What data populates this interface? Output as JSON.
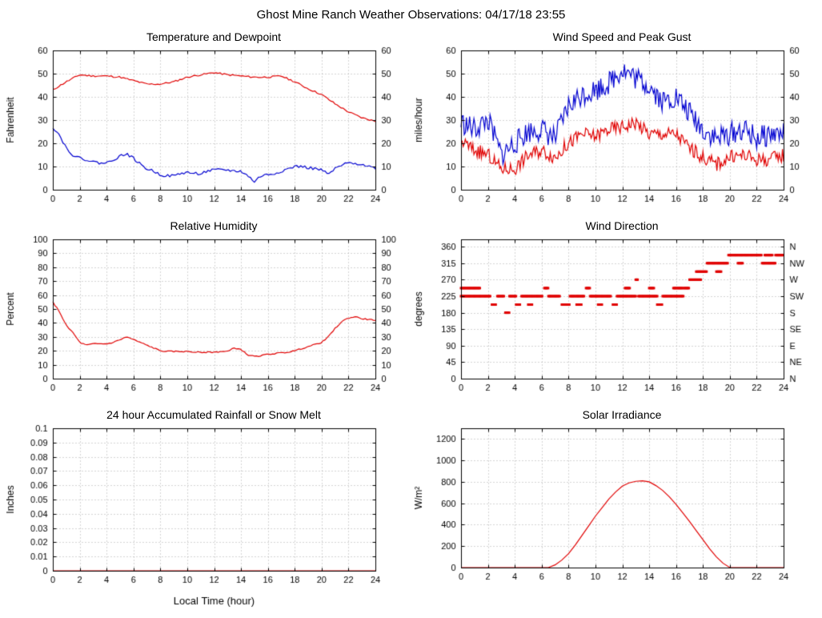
{
  "page_title": "Ghost Mine Ranch Weather Observations: 04/17/18 23:55",
  "colors": {
    "red": "#e00000",
    "blue": "#0000d0",
    "grid": "#a8a8a8",
    "axis": "#000000",
    "background": "#ffffff"
  },
  "chart_data": [
    {
      "name": "temperature-dewpoint",
      "type": "line",
      "title": "Temperature and Dewpoint",
      "ylabel": "Fahrenheit",
      "xlabel": "",
      "xlim": [
        0,
        24
      ],
      "xtick_step": 2,
      "ylim": [
        0,
        60
      ],
      "ytick_step": 10,
      "right_axis": "mirror",
      "grid": true,
      "series": [
        {
          "name": "temperature",
          "color": "#e00000",
          "style": "line",
          "x0": 0,
          "dx": 1,
          "noise": 0.35,
          "step": 0.15,
          "seed": 11,
          "y": [
            43,
            46.5,
            49.5,
            49,
            49,
            48.5,
            47,
            45.5,
            45.5,
            46.5,
            48.5,
            49.5,
            50.5,
            49.5,
            49,
            48.5,
            48.5,
            49,
            46.5,
            43.5,
            41,
            37,
            33.5,
            31,
            29.5
          ]
        },
        {
          "name": "dewpoint",
          "color": "#0000d0",
          "style": "line",
          "x0": 0,
          "dx": 0.5,
          "noise": 0.6,
          "step": 0.15,
          "seed": 22,
          "y": [
            27,
            23.5,
            18,
            15,
            13.5,
            13,
            12,
            11.5,
            11.5,
            13,
            14.5,
            15.5,
            13.5,
            11,
            9,
            8,
            6.5,
            6,
            6,
            7,
            7.5,
            7,
            7,
            8,
            8.5,
            8.5,
            8.5,
            8,
            8,
            6,
            3.5,
            6,
            6.5,
            7,
            8,
            9,
            10,
            10,
            9.5,
            9,
            8.5,
            6.5,
            9,
            10.5,
            11.5,
            11.5,
            11,
            10,
            9.5
          ]
        }
      ]
    },
    {
      "name": "wind-speed-peak-gust",
      "type": "line",
      "title": "Wind Speed and Peak Gust",
      "ylabel": "miles/hour",
      "xlabel": "",
      "xlim": [
        0,
        24
      ],
      "xtick_step": 2,
      "ylim": [
        0,
        60
      ],
      "ytick_step": 10,
      "right_axis": "mirror",
      "grid": true,
      "series": [
        {
          "name": "peak-gust",
          "color": "#0000d0",
          "style": "line",
          "x0": 0,
          "dx": 1,
          "noise": 5,
          "step": 0.08,
          "seed": 33,
          "y": [
            29,
            26,
            30,
            15,
            20,
            25,
            26,
            22,
            36,
            41,
            43,
            46,
            52,
            48,
            45,
            38,
            40,
            33,
            26,
            22,
            24,
            26,
            22,
            24,
            24
          ]
        },
        {
          "name": "wind-speed",
          "color": "#e00000",
          "style": "line",
          "x0": 0,
          "dx": 1,
          "noise": 3,
          "step": 0.08,
          "seed": 44,
          "y": [
            21,
            17,
            15,
            9,
            9,
            15,
            17,
            14,
            20,
            24,
            23,
            26,
            27,
            29,
            24,
            24,
            24,
            18,
            14,
            11,
            14,
            15,
            13,
            13,
            15
          ]
        }
      ]
    },
    {
      "name": "relative-humidity",
      "type": "line",
      "title": "Relative Humidity",
      "ylabel": "Percent",
      "xlabel": "",
      "xlim": [
        0,
        24
      ],
      "xtick_step": 2,
      "ylim": [
        0,
        100
      ],
      "ytick_step": 10,
      "right_axis": "mirror",
      "grid": true,
      "series": [
        {
          "name": "humidity",
          "color": "#e00000",
          "style": "line",
          "x0": 0,
          "dx": 0.5,
          "noise": 0.4,
          "step": 0.15,
          "seed": 66,
          "y": [
            55,
            48,
            38,
            33,
            26,
            24,
            25,
            25,
            25,
            26,
            28,
            30,
            28,
            26,
            24,
            22,
            20,
            19.5,
            19.5,
            19.5,
            19.5,
            19,
            19,
            19,
            19,
            19.5,
            19.5,
            22,
            21,
            17,
            16,
            16.5,
            17.5,
            18,
            18.5,
            19,
            20,
            21.5,
            23,
            24.5,
            26,
            30,
            36,
            41,
            43.5,
            44.5,
            43,
            42.5,
            42
          ]
        }
      ]
    },
    {
      "name": "wind-direction",
      "type": "scatter",
      "title": "Wind Direction",
      "ylabel": "degrees",
      "xlabel": "",
      "xlim": [
        0,
        24
      ],
      "xtick_step": 2,
      "ylim": [
        0,
        380
      ],
      "ytick_step": 45,
      "right_axis": "compass",
      "compass_labels": [
        "N",
        "NE",
        "E",
        "SE",
        "S",
        "SW",
        "W",
        "NW",
        "N"
      ],
      "grid": true,
      "series": [
        {
          "name": "wind-direction-dots",
          "color": "#e00000",
          "style": "dots",
          "dot_size": 3,
          "dot_step": 0.07,
          "runs": [
            [
              0.0,
              1.4,
              247
            ],
            [
              0.0,
              2.2,
              225
            ],
            [
              2.3,
              2.6,
              202
            ],
            [
              2.7,
              3.2,
              225
            ],
            [
              3.3,
              3.6,
              180
            ],
            [
              3.6,
              4.1,
              225
            ],
            [
              4.1,
              4.4,
              202
            ],
            [
              4.5,
              6.1,
              225
            ],
            [
              5.0,
              5.3,
              202
            ],
            [
              6.2,
              6.5,
              247
            ],
            [
              6.5,
              7.4,
              225
            ],
            [
              7.5,
              8.1,
              202
            ],
            [
              8.1,
              9.2,
              225
            ],
            [
              8.6,
              9.0,
              202
            ],
            [
              9.3,
              9.6,
              247
            ],
            [
              9.6,
              11.2,
              225
            ],
            [
              10.2,
              10.5,
              202
            ],
            [
              11.3,
              11.6,
              202
            ],
            [
              11.6,
              13.0,
              225
            ],
            [
              12.2,
              12.6,
              247
            ],
            [
              13.0,
              13.2,
              270
            ],
            [
              13.2,
              14.6,
              225
            ],
            [
              14.0,
              14.4,
              247
            ],
            [
              14.6,
              15.0,
              202
            ],
            [
              15.0,
              16.6,
              225
            ],
            [
              15.8,
              16.5,
              247
            ],
            [
              16.6,
              17.0,
              247
            ],
            [
              17.0,
              17.9,
              270
            ],
            [
              17.5,
              18.3,
              292
            ],
            [
              18.3,
              19.9,
              315
            ],
            [
              19.0,
              19.4,
              292
            ],
            [
              19.9,
              22.4,
              337
            ],
            [
              20.6,
              21.0,
              315
            ],
            [
              22.4,
              23.4,
              315
            ],
            [
              22.6,
              23.2,
              337
            ],
            [
              23.4,
              24.0,
              337
            ]
          ]
        }
      ]
    },
    {
      "name": "rainfall",
      "type": "line",
      "title": "24 hour Accumulated Rainfall or Snow Melt",
      "ylabel": "Inches",
      "xlabel": "Local Time (hour)",
      "xlim": [
        0,
        24
      ],
      "xtick_step": 2,
      "ylim": [
        0,
        0.1
      ],
      "ytick_step": 0.01,
      "right_axis": "none",
      "grid": true,
      "series": [
        {
          "name": "rainfall-line",
          "color": "#e00000",
          "style": "line",
          "noise": 0,
          "x": [
            0,
            24
          ],
          "y": [
            0,
            0
          ]
        }
      ]
    },
    {
      "name": "solar-irradiance",
      "type": "line",
      "title": "Solar Irradiance",
      "ylabel": "W/m²",
      "xlabel": "",
      "xlim": [
        0,
        24
      ],
      "xtick_step": 2,
      "ylim": [
        0,
        1300
      ],
      "ytick_step": 200,
      "right_axis": "none",
      "grid": true,
      "series": [
        {
          "name": "solar",
          "color": "#e00000",
          "style": "line",
          "noise": 0,
          "x": [
            0,
            6.5,
            7,
            7.5,
            8,
            8.5,
            9,
            9.5,
            10,
            10.5,
            11,
            11.5,
            12,
            12.5,
            13,
            13.5,
            14,
            14.5,
            15,
            15.5,
            16,
            16.5,
            17,
            17.5,
            18,
            18.5,
            19,
            19.5,
            20,
            24
          ],
          "y": [
            0,
            0,
            25,
            70,
            130,
            210,
            300,
            390,
            480,
            560,
            640,
            705,
            760,
            790,
            805,
            810,
            800,
            765,
            720,
            660,
            590,
            510,
            430,
            345,
            260,
            175,
            100,
            40,
            0,
            0
          ]
        }
      ]
    }
  ]
}
